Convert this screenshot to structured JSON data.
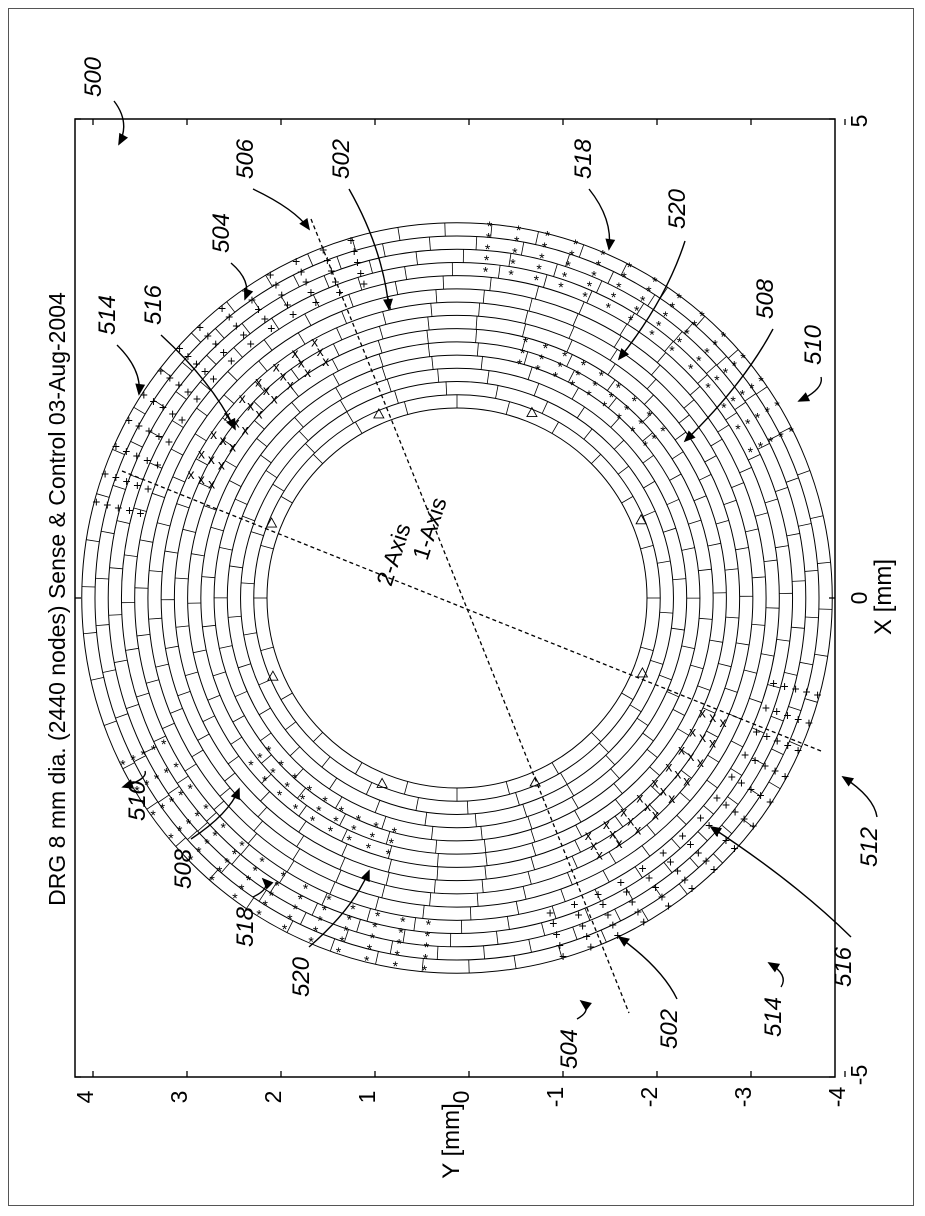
{
  "figure": {
    "title": "DRG 8 mm dia. (2440 nodes)  Sense & Control  03-Aug-2004",
    "x_label": "X [mm]",
    "y_label": "Y [mm]",
    "x_ticks": [
      "-5",
      "0",
      "5"
    ],
    "y_ticks": [
      "4",
      "3",
      "2",
      "1",
      "0",
      "-1",
      "-2",
      "-3",
      "-4"
    ],
    "axis_labels": {
      "axis1": "1-Axis",
      "axis2": "2-Axis"
    },
    "x_range_mm": [
      -5,
      5
    ],
    "y_range_mm": [
      -4,
      4
    ],
    "orientation": "page rotated 90° counter-clockwise",
    "ring_radii_mm": {
      "inner_min": 2.0,
      "outer_max": 3.95
    },
    "marker_styles": [
      "+",
      "*",
      "x",
      "diamond",
      "triangle"
    ]
  },
  "reference_numerals": [
    {
      "label": "500",
      "role": "figure"
    },
    {
      "label": "506",
      "role": "axis"
    },
    {
      "label": "502",
      "role": "ring"
    },
    {
      "label": "518",
      "role": "electrode"
    },
    {
      "label": "504",
      "role": "electrode"
    },
    {
      "label": "520",
      "role": "electrode"
    },
    {
      "label": "516",
      "role": "electrode"
    },
    {
      "label": "514",
      "role": "electrode"
    },
    {
      "label": "508",
      "role": "electrode"
    },
    {
      "label": "510",
      "role": "electrode"
    },
    {
      "label": "510",
      "role": "electrode"
    },
    {
      "label": "508",
      "role": "electrode"
    },
    {
      "label": "518",
      "role": "electrode"
    },
    {
      "label": "520",
      "role": "electrode"
    },
    {
      "label": "504",
      "role": "electrode"
    },
    {
      "label": "502",
      "role": "ring"
    },
    {
      "label": "514",
      "role": "electrode"
    },
    {
      "label": "516",
      "role": "electrode"
    },
    {
      "label": "512",
      "role": "axis"
    }
  ]
}
